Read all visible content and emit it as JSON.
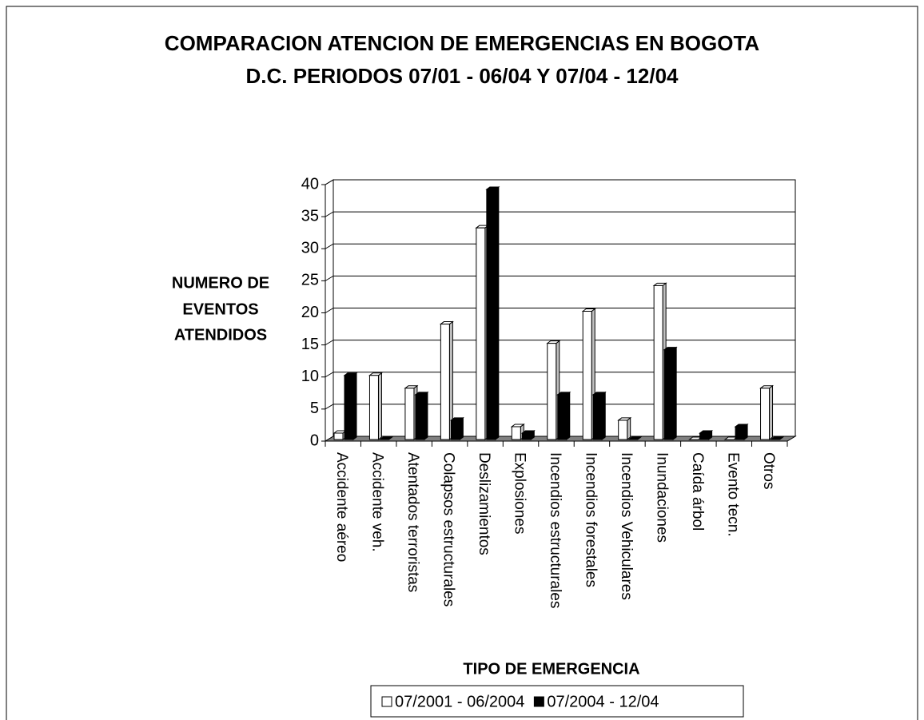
{
  "chart_data": {
    "type": "bar3d",
    "title": [
      "COMPARACION ATENCION DE EMERGENCIAS EN BOGOTA",
      "D.C. PERIODOS 07/01 - 06/04 Y 07/04 - 12/04"
    ],
    "y_label": [
      "NUMERO DE",
      "EVENTOS",
      "ATENDIDOS"
    ],
    "x_label": "TIPO DE EMERGENCIA",
    "categories": [
      "Accidente aéreo",
      "Accidente veh.",
      "Atentados terroristas",
      "Colapsos estructurales",
      "Deslizamientos",
      "Explosiones",
      "Incendios estructurales",
      "Incendios forestales",
      "Incendios Vehiculares",
      "Inundaciones",
      "Caída árbol",
      "Evento tecn.",
      "Otros"
    ],
    "series": [
      {
        "name": "07/2001 - 06/2004",
        "color": "#ffffff",
        "values": [
          1,
          10,
          8,
          18,
          33,
          2,
          15,
          20,
          3,
          24,
          0,
          0,
          8
        ]
      },
      {
        "name": "07/2004 - 12/04",
        "color": "#000000",
        "values": [
          10,
          0,
          7,
          3,
          39,
          1,
          7,
          7,
          0,
          14,
          1,
          2,
          0
        ]
      }
    ],
    "ylim": [
      0,
      40
    ],
    "yticks": [
      0,
      5,
      10,
      15,
      20,
      25,
      30,
      35,
      40
    ],
    "grid": true,
    "legend": "bottom"
  }
}
